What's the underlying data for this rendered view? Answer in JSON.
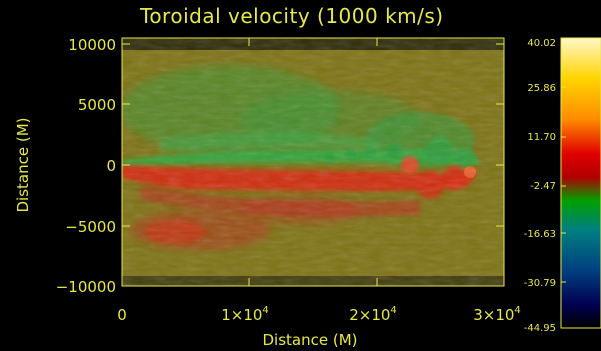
{
  "title": "Toroidal velocity (1000 km/s)",
  "axes": {
    "xlabel": "Distance (M)",
    "ylabel": "Distance (M)",
    "x_ticks": [
      {
        "base": "0",
        "exp": ""
      },
      {
        "base": "1×10",
        "exp": "4"
      },
      {
        "base": "2×10",
        "exp": "4"
      },
      {
        "base": "3×10",
        "exp": "4"
      }
    ],
    "y_ticks": [
      "10000",
      "5000",
      "0",
      "−5000",
      "−10000"
    ]
  },
  "colorbar": {
    "ticks": [
      "40.02",
      "25.86",
      "11.70",
      "-2.47",
      "-16.63",
      "-30.79",
      "-44.95"
    ],
    "colors": {
      "top": "#fff8c8",
      "orange": "#ff8c00",
      "red": "#e00000",
      "green": "#00a000",
      "teal": "#008080",
      "navy": "#000050",
      "bottom": "#000000"
    }
  },
  "image_colors": {
    "background": "#7e7214",
    "positive": "#d42a10",
    "negative": "#2e9c3a"
  }
}
